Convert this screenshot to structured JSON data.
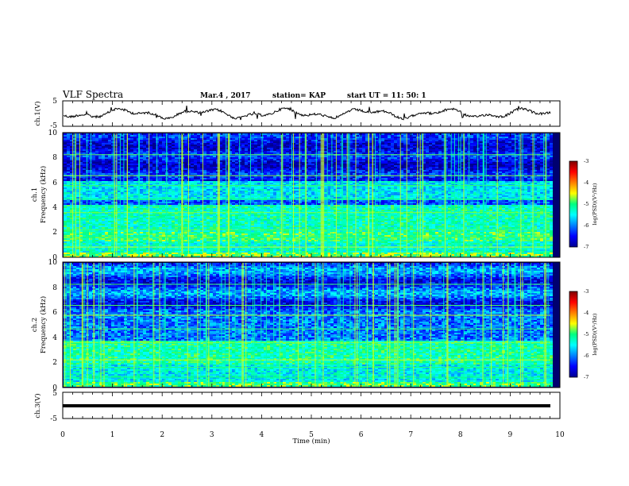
{
  "header": {
    "title": "VLF Spectra",
    "date": "Mar.4 , 2017",
    "station": "station= KAP",
    "start_ut": "start UT =  11: 50: 1"
  },
  "chart_data": [
    {
      "type": "line",
      "ylabel": "ch.1(V)",
      "ylim": [
        -5,
        5
      ],
      "ytick_labels": [
        "5",
        "-5"
      ],
      "xlim": [
        0,
        10
      ]
    },
    {
      "type": "heatmap",
      "ylabel_line1": "ch.1",
      "ylabel_line2": "Frequency (kHz)",
      "ylim": [
        0,
        10
      ],
      "ytick_labels": [
        "10",
        "8",
        "6",
        "4",
        "2",
        "0"
      ],
      "colorbar": {
        "label": "log(PSD)(V²/Hz)",
        "min": -7,
        "max": -3,
        "tick_labels": [
          "-3",
          "-4",
          "-5",
          "-6",
          "-7"
        ]
      }
    },
    {
      "type": "heatmap",
      "ylabel_line1": "ch.2",
      "ylabel_line2": "Frequency (kHz)",
      "ylim": [
        0,
        10
      ],
      "ytick_labels": [
        "10",
        "8",
        "6",
        "4",
        "2",
        "0"
      ],
      "colorbar": {
        "label": "log(PSD)(V²/Hz)",
        "min": -7,
        "max": -3,
        "tick_labels": [
          "-3",
          "-4",
          "-5",
          "-6",
          "-7"
        ]
      }
    },
    {
      "type": "line",
      "ylabel": "ch.3(V)",
      "ylim": [
        -5,
        5
      ],
      "ytick_labels": [
        "5",
        "-5"
      ],
      "xlabel": "Time (min)",
      "xlim": [
        0,
        10
      ],
      "xtick_labels": [
        "0",
        "1",
        "2",
        "3",
        "4",
        "5",
        "6",
        "7",
        "8",
        "9",
        "10"
      ]
    }
  ]
}
